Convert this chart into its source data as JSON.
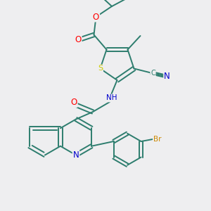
{
  "background_color": "#eeeef0",
  "bond_color": "#2d7d6e",
  "atom_colors": {
    "S": "#cccc00",
    "O": "#ff0000",
    "N": "#0000cc",
    "C": "#2d7d6e",
    "Br": "#cc8800",
    "H": "#2d7d6e"
  },
  "figsize": [
    3.0,
    3.0
  ],
  "dpi": 100
}
